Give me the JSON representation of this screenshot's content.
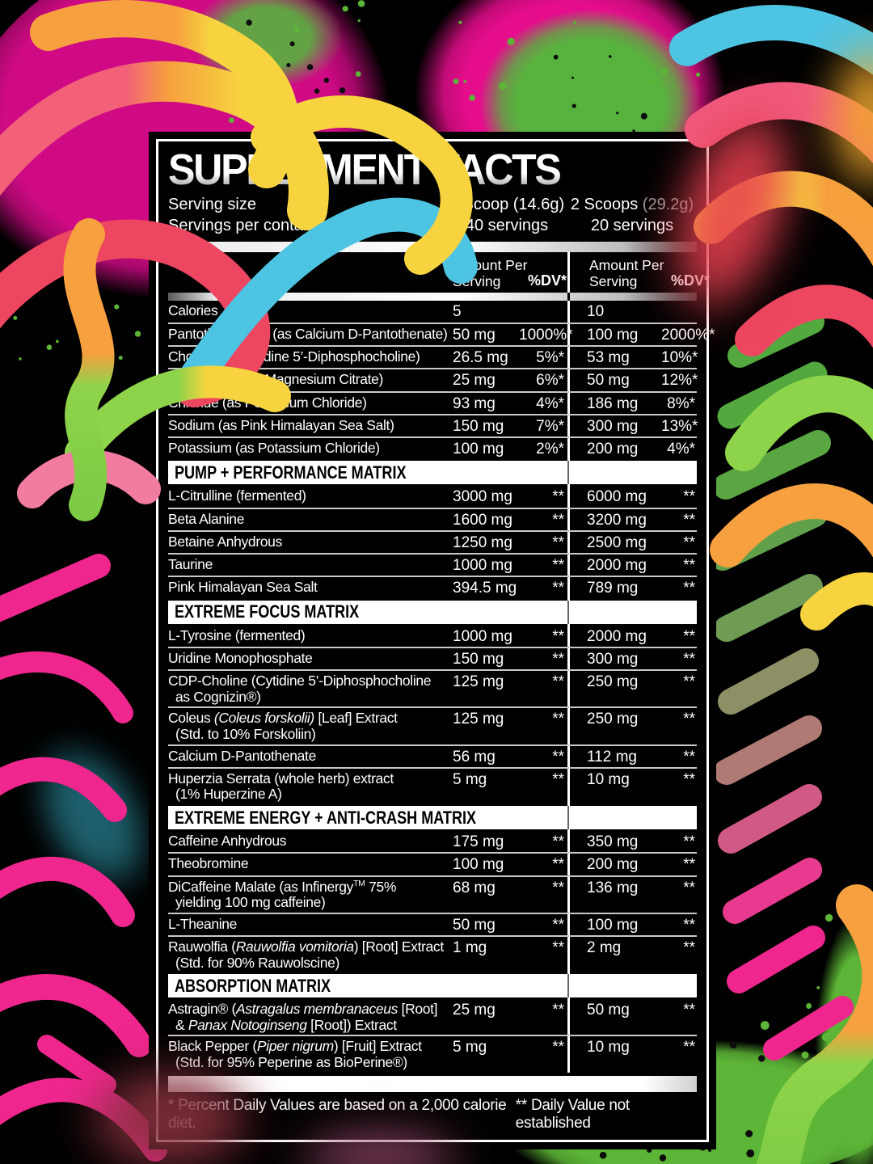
{
  "colors": {
    "splatter_pink": "#e50d8c",
    "splatter_green": "#5cb536",
    "label_bg": "#000000",
    "label_text": "#ffffff",
    "header_bar_bg": "#ffffff",
    "muted_gray": "#9a9a9a"
  },
  "label": {
    "title": "SUPPLEMENT FACTS",
    "serving": {
      "size_label": "Serving size",
      "container_label": "Servings per container",
      "scoop1": "1 Scoop (14.6g)",
      "servings1": "40 servings",
      "scoop2": "2 Scoops",
      "scoop2_grams": "(29.2g)",
      "servings2": "20 servings"
    },
    "col_header": {
      "amount": "Amount Per Serving",
      "dv": "%DV*"
    },
    "main_rows": [
      {
        "name": [
          {
            "t": "Calories"
          }
        ],
        "a1": "5",
        "d1": "",
        "a2": "10",
        "d2": ""
      },
      {
        "name": [
          {
            "t": "Pantothenic Acid (as Calcium D-Pantothenate)"
          }
        ],
        "a1": "50 mg",
        "d1": "1000%*",
        "a2": "100 mg",
        "d2": "2000%*"
      },
      {
        "name": [
          {
            "t": "Choline (as Cytidine 5’-Diphosphocholine)"
          }
        ],
        "a1": "26.5 mg",
        "d1": "5%*",
        "a2": "53 mg",
        "d2": "10%*"
      },
      {
        "name": [
          {
            "t": "Magnesium (as Magnesium Citrate)"
          }
        ],
        "a1": "25 mg",
        "d1": "6%*",
        "a2": "50 mg",
        "d2": "12%*"
      },
      {
        "name": [
          {
            "t": "Chloride (as Potassium Chloride)"
          }
        ],
        "a1": "93 mg",
        "d1": "4%*",
        "a2": "186 mg",
        "d2": "8%*"
      },
      {
        "name": [
          {
            "t": "Sodium (as Pink Himalayan Sea Salt)"
          }
        ],
        "a1": "150 mg",
        "d1": "7%*",
        "a2": "300 mg",
        "d2": "13%*"
      },
      {
        "name": [
          {
            "t": "Potassium (as Potassium Chloride)"
          }
        ],
        "a1": "100 mg",
        "d1": "2%*",
        "a2": "200 mg",
        "d2": "4%*"
      }
    ],
    "sections": [
      {
        "header": "PUMP + PERFORMANCE MATRIX",
        "rows": [
          {
            "name": [
              {
                "t": "L-Citrulline (fermented)"
              }
            ],
            "a1": "3000 mg",
            "d1": "**",
            "a2": "6000 mg",
            "d2": "**"
          },
          {
            "name": [
              {
                "t": "Beta Alanine"
              }
            ],
            "a1": "1600 mg",
            "d1": "**",
            "a2": "3200 mg",
            "d2": "**"
          },
          {
            "name": [
              {
                "t": "Betaine Anhydrous"
              }
            ],
            "a1": "1250 mg",
            "d1": "**",
            "a2": "2500 mg",
            "d2": "**"
          },
          {
            "name": [
              {
                "t": "Taurine"
              }
            ],
            "a1": "1000 mg",
            "d1": "**",
            "a2": "2000 mg",
            "d2": "**"
          },
          {
            "name": [
              {
                "t": "Pink Himalayan Sea Salt"
              }
            ],
            "a1": "394.5 mg",
            "d1": "**",
            "a2": "789 mg",
            "d2": "**"
          }
        ]
      },
      {
        "header": "EXTREME FOCUS MATRIX",
        "rows": [
          {
            "name": [
              {
                "t": "L-Tyrosine (fermented)"
              }
            ],
            "a1": "1000 mg",
            "d1": "**",
            "a2": "2000 mg",
            "d2": "**"
          },
          {
            "name": [
              {
                "t": "Uridine Monophosphate"
              }
            ],
            "a1": "150 mg",
            "d1": "**",
            "a2": "300 mg",
            "d2": "**"
          },
          {
            "name": [
              {
                "t": "CDP-Choline (Cytidine 5’-Diphosphocholine"
              }
            ],
            "line2": [
              {
                "t": "as Cognizin®)"
              }
            ],
            "a1": "125 mg",
            "d1": "**",
            "a2": "250 mg",
            "d2": "**"
          },
          {
            "name": [
              {
                "t": "Coleus "
              },
              {
                "t": "(Coleus forskolii)",
                "i": true
              },
              {
                "t": " [Leaf] Extract"
              }
            ],
            "line2": [
              {
                "t": "(Std. to 10% Forskoliin)"
              }
            ],
            "a1": "125 mg",
            "d1": "**",
            "a2": "250 mg",
            "d2": "**"
          },
          {
            "name": [
              {
                "t": "Calcium D-Pantothenate"
              }
            ],
            "a1": "56 mg",
            "d1": "**",
            "a2": "112 mg",
            "d2": "**"
          },
          {
            "name": [
              {
                "t": "Huperzia Serrata (whole herb) extract"
              }
            ],
            "line2": [
              {
                "t": "(1% Huperzine A)"
              }
            ],
            "a1": "5 mg",
            "d1": "**",
            "a2": "10 mg",
            "d2": "**"
          }
        ]
      },
      {
        "header": "EXTREME ENERGY + ANTI-CRASH MATRIX",
        "rows": [
          {
            "name": [
              {
                "t": "Caffeine Anhydrous"
              }
            ],
            "a1": "175 mg",
            "d1": "**",
            "a2": "350 mg",
            "d2": "**"
          },
          {
            "name": [
              {
                "t": "Theobromine"
              }
            ],
            "a1": "100 mg",
            "d1": "**",
            "a2": "200 mg",
            "d2": "**"
          },
          {
            "name": [
              {
                "t": "DiCaffeine Malate (as Infinergy"
              },
              {
                "t": "TM",
                "sup": true
              },
              {
                "t": " 75%"
              }
            ],
            "line2": [
              {
                "t": "yielding 100 mg caffeine)"
              }
            ],
            "a1": "68 mg",
            "d1": "**",
            "a2": "136 mg",
            "d2": "**"
          },
          {
            "name": [
              {
                "t": "L-Theanine"
              }
            ],
            "a1": "50 mg",
            "d1": "**",
            "a2": "100 mg",
            "d2": "**"
          },
          {
            "name": [
              {
                "t": "Rauwolfia ("
              },
              {
                "t": "Rauwolfia vomitoria",
                "i": true
              },
              {
                "t": ") [Root] Extract"
              }
            ],
            "line2": [
              {
                "t": "(Std. for 90% Rauwolscine)"
              }
            ],
            "a1": "1 mg",
            "d1": "**",
            "a2": "2 mg",
            "d2": "**"
          }
        ]
      },
      {
        "header": "ABSORPTION MATRIX",
        "rows": [
          {
            "name": [
              {
                "t": "Astragin® ("
              },
              {
                "t": "Astragalus membranaceus",
                "i": true
              },
              {
                "t": " [Root]"
              }
            ],
            "line2": [
              {
                "t": "& "
              },
              {
                "t": "Panax Notoginseng",
                "i": true
              },
              {
                "t": " [Root]) Extract"
              }
            ],
            "a1": "25 mg",
            "d1": "**",
            "a2": "50 mg",
            "d2": "**"
          },
          {
            "name": [
              {
                "t": "Black Pepper ("
              },
              {
                "t": "Piper nigrum",
                "i": true
              },
              {
                "t": ") [Fruit] Extract"
              }
            ],
            "line2": [
              {
                "t": "(Std. for 95% Peperine as BioPerine®)"
              }
            ],
            "a1": "5 mg",
            "d1": "**",
            "a2": "10 mg",
            "d2": "**"
          }
        ]
      }
    ],
    "footnotes": {
      "left": "* Percent Daily Values are based on a 2,000 calorie diet.",
      "right": "** Daily Value not established"
    }
  }
}
